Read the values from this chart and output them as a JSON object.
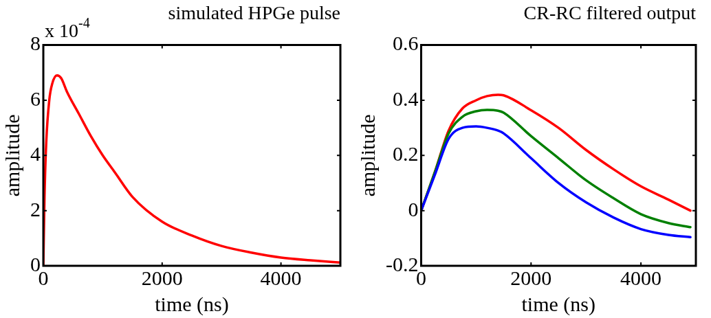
{
  "chart_data": [
    {
      "type": "line",
      "title": "simulated HPGe pulse",
      "xlabel": "time (ns)",
      "ylabel": "amplitude",
      "annotations": [
        "x 10$^{-4}$"
      ],
      "xlim": [
        0,
        5000
      ],
      "xticks": [
        0,
        2000,
        4000
      ],
      "ylim": [
        0,
        8
      ],
      "yticks": [
        0,
        2,
        4,
        6,
        8
      ],
      "series": [
        {
          "color": "#ff0000",
          "x": [
            0,
            20,
            50,
            100,
            150,
            230,
            300,
            400,
            600,
            800,
            1000,
            1200,
            1500,
            2000,
            2500,
            3000,
            3500,
            4000,
            4500,
            5000
          ],
          "values": [
            0,
            2.5,
            4.5,
            6.0,
            6.6,
            6.9,
            6.8,
            6.3,
            5.5,
            4.7,
            4.0,
            3.4,
            2.5,
            1.6,
            1.1,
            0.72,
            0.48,
            0.3,
            0.2,
            0.12
          ]
        }
      ]
    },
    {
      "type": "line",
      "title": "CR-RC filtered output",
      "xlabel": "time (ns)",
      "ylabel": "amplitude",
      "xlim": [
        0,
        5000
      ],
      "xticks": [
        0,
        2000,
        4000
      ],
      "ylim": [
        -0.2,
        0.6
      ],
      "yticks": [
        -0.2,
        0,
        0.2,
        0.4,
        0.6
      ],
      "series": [
        {
          "color": "#0000ff",
          "x": [
            0,
            250,
            500,
            750,
            1000,
            1200,
            1400,
            1500,
            2000,
            2500,
            3000,
            3500,
            4000,
            4500,
            4900
          ],
          "values": [
            0,
            0.13,
            0.26,
            0.3,
            0.305,
            0.3,
            0.29,
            0.28,
            0.19,
            0.1,
            0.03,
            -0.025,
            -0.067,
            -0.088,
            -0.096
          ]
        },
        {
          "color": "#008000",
          "x": [
            0,
            250,
            500,
            750,
            1000,
            1200,
            1400,
            1500,
            2000,
            2500,
            3000,
            3500,
            4000,
            4500,
            4900
          ],
          "values": [
            0,
            0.14,
            0.28,
            0.34,
            0.36,
            0.365,
            0.362,
            0.355,
            0.27,
            0.19,
            0.11,
            0.045,
            -0.013,
            -0.045,
            -0.06
          ]
        },
        {
          "color": "#ff0000",
          "x": [
            0,
            250,
            500,
            750,
            1000,
            1200,
            1400,
            1500,
            2000,
            2500,
            3000,
            3500,
            4000,
            4500,
            4900
          ],
          "values": [
            0,
            0.14,
            0.29,
            0.37,
            0.4,
            0.415,
            0.42,
            0.418,
            0.364,
            0.3,
            0.22,
            0.15,
            0.088,
            0.04,
            0
          ]
        }
      ]
    }
  ]
}
